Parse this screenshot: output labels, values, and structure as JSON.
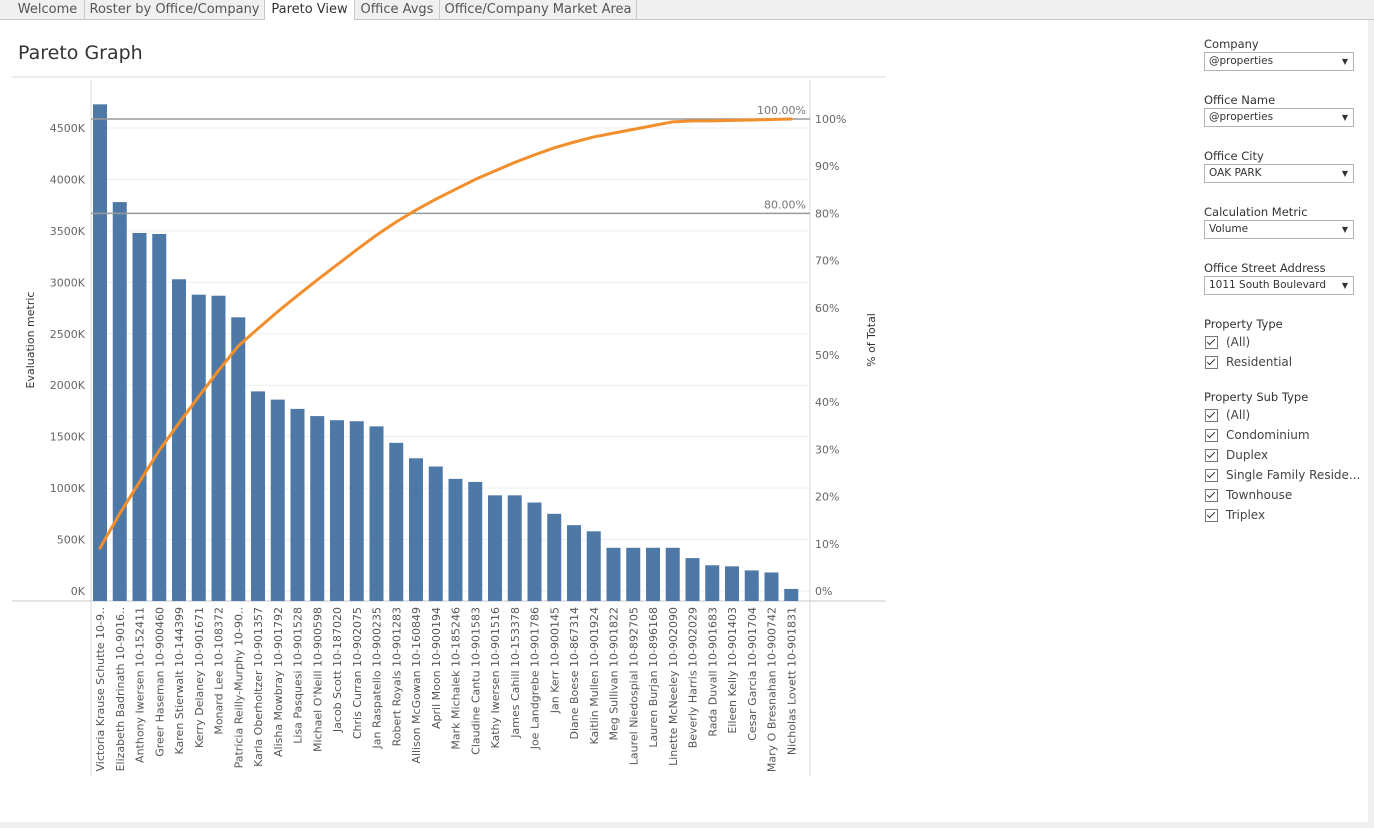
{
  "tabs": [
    {
      "label": "Welcome",
      "active": false
    },
    {
      "label": "Roster by Office/Company",
      "active": false
    },
    {
      "label": "Pareto View",
      "active": true
    },
    {
      "label": "Office Avgs",
      "active": false
    },
    {
      "label": "Office/Company Market Area",
      "active": false
    }
  ],
  "sheet": {
    "title": "Pareto Graph"
  },
  "filters": {
    "company": {
      "label": "Company",
      "value": "@properties"
    },
    "office_name": {
      "label": "Office Name",
      "value": "@properties"
    },
    "office_city": {
      "label": "Office City",
      "value": "OAK PARK"
    },
    "calculation_metric": {
      "label": "Calculation Metric",
      "value": "Volume"
    },
    "office_street_address": {
      "label": "Office Street Address",
      "value": "1011 South Boulevard"
    },
    "property_type": {
      "label": "Property Type",
      "options": [
        "(All)",
        "Residential"
      ]
    },
    "property_sub_type": {
      "label": "Property Sub Type",
      "options": [
        "(All)",
        "Condominium",
        "Duplex",
        "Single Family Reside...",
        "Townhouse",
        "Triplex"
      ]
    }
  },
  "colors": {
    "bar": "#4e79a7",
    "line": "#f28e2b",
    "reference_line": "#999999",
    "grid": "#eeeeee",
    "axis_text": "#666666"
  },
  "chart_data": {
    "type": "bar",
    "categories": [
      "Victoria Krause Schutte 10-9..",
      "Elizabeth Badrinath 10-9016..",
      "Anthony Iwersen 10-152411",
      "Greer Haseman 10-900460",
      "Karen Stierwalt 10-144399",
      "Kerry Delaney 10-901671",
      "Monard Lee 10-108372",
      "Patricia Reilly-Murphy 10-90..",
      "Karla Oberholtzer 10-901357",
      "Alisha Mowbray 10-901792",
      "Lisa Pasquesi 10-901528",
      "Michael O'Neill 10-900598",
      "Jacob Scott 10-187020",
      "Chris Curran 10-902075",
      "Jan Raspatello 10-900235",
      "Robert Royals 10-901283",
      "Allison McGowan 10-160849",
      "April Moon 10-900194",
      "Mark Michalek 10-185246",
      "Claudine Cantu 10-901583",
      "Kathy Iwersen 10-901516",
      "James Cahill 10-153378",
      "Joe Landgrebe 10-901786",
      "Jan Kerr 10-900145",
      "Diane Boese 10-867314",
      "Kaitlin Mullen 10-901924",
      "Meg Sullivan 10-901822",
      "Laurel Niedospial 10-892705",
      "Lauren Burjan 10-896168",
      "Linette McNeeley 10-902090",
      "Beverly Harris 10-902029",
      "Rada Duvall 10-901683",
      "Eileen Kelly 10-901403",
      "Cesar Garcia 10-901704",
      "Mary O Bresnahan 10-900742",
      "Nicholas Lovett 10-901831"
    ],
    "series": [
      {
        "name": "Evaluation metric",
        "axis": "left",
        "type": "bar",
        "values": [
          4730,
          3780,
          3480,
          3470,
          3030,
          2880,
          2870,
          2660,
          1940,
          1860,
          1770,
          1700,
          1660,
          1650,
          1600,
          1440,
          1290,
          1210,
          1090,
          1060,
          930,
          930,
          860,
          750,
          640,
          580,
          420,
          420,
          420,
          420,
          320,
          250,
          240,
          200,
          180,
          20
        ]
      },
      {
        "name": "% of Total",
        "axis": "right",
        "type": "line",
        "values": [
          9.1,
          16.4,
          23.1,
          29.8,
          35.6,
          41.2,
          46.7,
          51.9,
          55.6,
          59.2,
          62.6,
          65.9,
          69.1,
          72.3,
          75.4,
          78.2,
          80.7,
          83.0,
          85.1,
          87.2,
          89.0,
          90.8,
          92.4,
          93.9,
          95.1,
          96.2,
          97.0,
          97.8,
          98.6,
          99.4,
          99.6,
          99.6,
          99.7,
          99.8,
          99.9,
          100.0
        ]
      }
    ],
    "ylabel_left": "Evaluation metric",
    "ylabel_right": "% of Total",
    "yticks_left": [
      "0K",
      "500K",
      "1000K",
      "1500K",
      "2000K",
      "2500K",
      "3000K",
      "3500K",
      "4000K",
      "4500K"
    ],
    "yticks_right": [
      "0%",
      "10%",
      "20%",
      "30%",
      "40%",
      "50%",
      "60%",
      "70%",
      "80%",
      "90%",
      "100%"
    ],
    "ylim_left": [
      0,
      4850
    ],
    "ylim_right": [
      0,
      100
    ],
    "reference_lines": [
      {
        "value": 100,
        "label": "100.00%"
      },
      {
        "value": 80,
        "label": "80.00%"
      }
    ],
    "grid": true
  }
}
